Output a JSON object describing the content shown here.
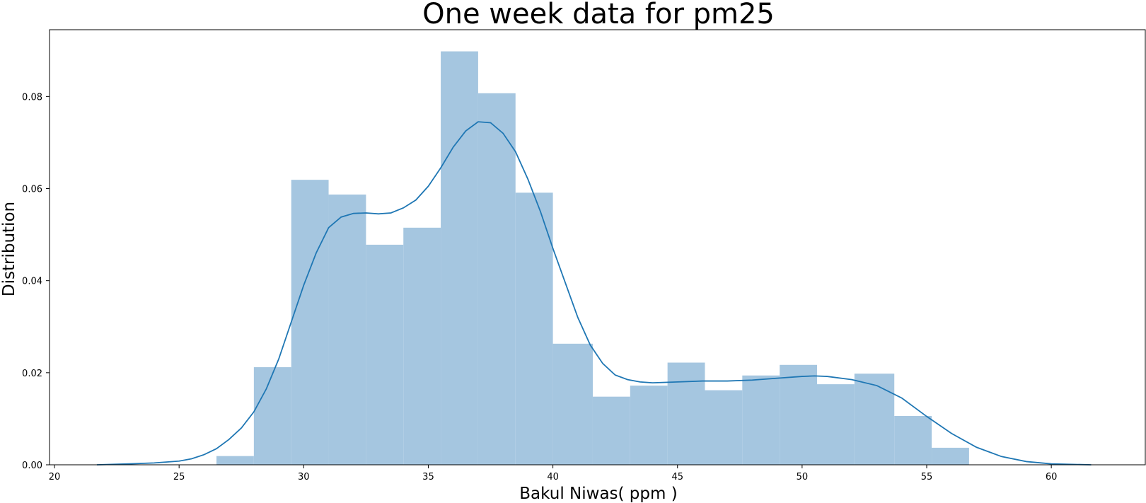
{
  "chart_data": {
    "type": "bar",
    "subtype": "histogram-with-kde",
    "title": "One week data for pm25",
    "xlabel": "Bakul Niwas( ppm )",
    "ylabel": "Distribution",
    "xlim": [
      19.8,
      63.8
    ],
    "ylim": [
      0,
      0.0945
    ],
    "xticks": [
      20,
      25,
      30,
      35,
      40,
      45,
      50,
      55,
      60
    ],
    "yticks": [
      0.0,
      0.02,
      0.04,
      0.06,
      0.08
    ],
    "ytick_labels": [
      "0.00",
      "0.02",
      "0.04",
      "0.06",
      "0.08"
    ],
    "grid": false,
    "legend": "none",
    "colors": {
      "bars": "#a5c6e0",
      "kde": "#1f77b4",
      "axis": "#000000"
    },
    "histogram": {
      "bin_edges": [
        26.5,
        28.0,
        29.5,
        31.0,
        32.5,
        34.0,
        35.5,
        37.0,
        38.5,
        40.0,
        41.6,
        43.1,
        44.6,
        46.1,
        47.6,
        49.1,
        50.6,
        52.1,
        53.7,
        55.2,
        56.7
      ],
      "values": [
        0.0019,
        0.0212,
        0.0619,
        0.0587,
        0.0478,
        0.0515,
        0.0898,
        0.0807,
        0.0591,
        0.0263,
        0.0148,
        0.0172,
        0.0222,
        0.0162,
        0.0194,
        0.0217,
        0.0175,
        0.0198,
        0.0106,
        0.0037
      ]
    },
    "kde": {
      "name": "",
      "x": [
        21.7,
        23.0,
        24.0,
        25.0,
        25.5,
        26.0,
        26.5,
        27.0,
        27.5,
        28.0,
        28.5,
        29.0,
        29.5,
        30.0,
        30.5,
        31.0,
        31.5,
        32.0,
        32.5,
        33.0,
        33.5,
        34.0,
        34.5,
        35.0,
        35.5,
        36.0,
        36.5,
        37.0,
        37.5,
        38.0,
        38.5,
        39.0,
        39.5,
        40.0,
        40.5,
        41.0,
        41.5,
        42.0,
        42.5,
        43.0,
        43.5,
        44.0,
        45.0,
        46.0,
        47.0,
        48.0,
        49.0,
        50.0,
        50.5,
        51.0,
        52.0,
        53.0,
        54.0,
        55.0,
        56.0,
        57.0,
        58.0,
        59.0,
        60.0,
        61.6
      ],
      "y": [
        0.0,
        0.0002,
        0.0004,
        0.0008,
        0.0013,
        0.0022,
        0.0035,
        0.0055,
        0.008,
        0.0115,
        0.0165,
        0.023,
        0.031,
        0.039,
        0.046,
        0.0515,
        0.0538,
        0.0546,
        0.0547,
        0.0545,
        0.0547,
        0.0558,
        0.0575,
        0.0605,
        0.0645,
        0.069,
        0.0725,
        0.0745,
        0.0743,
        0.072,
        0.068,
        0.062,
        0.055,
        0.047,
        0.0395,
        0.032,
        0.026,
        0.022,
        0.0195,
        0.0185,
        0.018,
        0.0178,
        0.018,
        0.0182,
        0.0182,
        0.0184,
        0.0188,
        0.0192,
        0.0193,
        0.0192,
        0.0185,
        0.0172,
        0.0145,
        0.0105,
        0.0068,
        0.0038,
        0.0018,
        0.0007,
        0.0002,
        0.0
      ]
    }
  }
}
